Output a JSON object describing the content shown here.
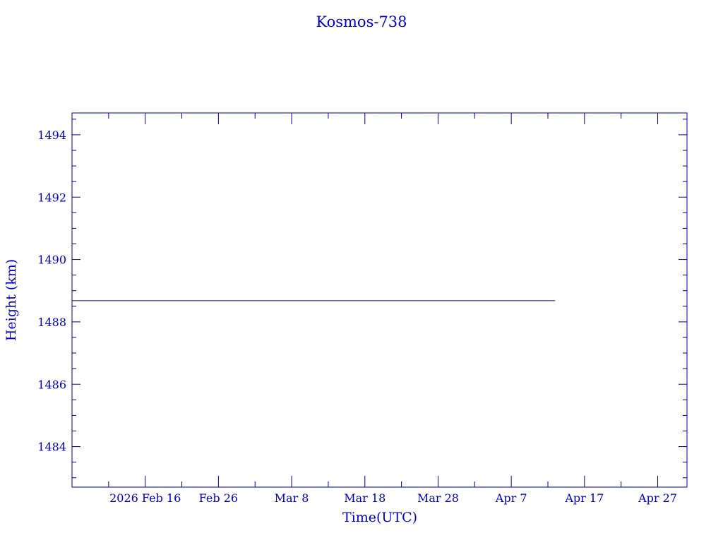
{
  "chart_data": {
    "type": "line",
    "title": "Kosmos-738",
    "xlabel": "Time(UTC)",
    "ylabel": "Height (km)",
    "x_type": "date",
    "xlim": [
      "2026-02-06",
      "2026-05-01"
    ],
    "ylim": [
      1482.7,
      1494.7
    ],
    "x_ticks": [
      {
        "date": "2026-02-16",
        "label": "2026 Feb 16"
      },
      {
        "date": "2026-02-26",
        "label": "Feb 26"
      },
      {
        "date": "2026-03-08",
        "label": "Mar  8"
      },
      {
        "date": "2026-03-18",
        "label": "Mar 18"
      },
      {
        "date": "2026-03-28",
        "label": "Mar 28"
      },
      {
        "date": "2026-04-07",
        "label": "Apr  7"
      },
      {
        "date": "2026-04-17",
        "label": "Apr 17"
      },
      {
        "date": "2026-04-27",
        "label": "Apr 27"
      }
    ],
    "y_ticks": [
      1484,
      1486,
      1488,
      1490,
      1492,
      1494
    ],
    "grid": false,
    "series": [
      {
        "x": [
          "2026-02-06",
          "2026-04-13"
        ],
        "y": [
          1488.68,
          1488.68
        ],
        "color": "#000080"
      }
    ],
    "colors": {
      "axis": "#0000a0",
      "text": "#0000c8"
    }
  }
}
